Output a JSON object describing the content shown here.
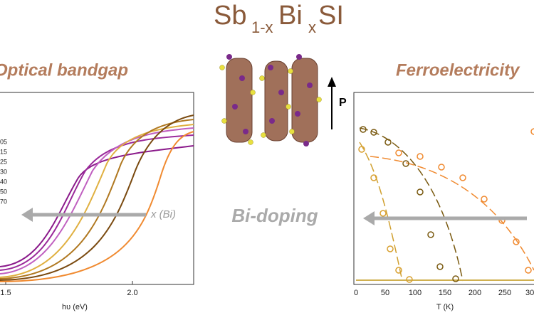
{
  "title": {
    "parts": [
      "Sb",
      "1-x",
      "Bi",
      "x",
      "SI"
    ]
  },
  "left_panel": {
    "heading": "Optical bandgap",
    "xticks": [
      "1.5",
      "2.0"
    ],
    "xlabel": "hυ (eV)",
    "legend": [
      "05",
      "15",
      "25",
      "30",
      "40",
      "50",
      "70"
    ],
    "arrow_label": "x (Bi)"
  },
  "center": {
    "label": "Bi-doping",
    "polarization": "P"
  },
  "right_panel": {
    "heading": "Ferroelectricity",
    "xticks": [
      "0",
      "50",
      "100",
      "150",
      "200",
      "250",
      "30"
    ],
    "xlabel": "T (K)"
  }
}
